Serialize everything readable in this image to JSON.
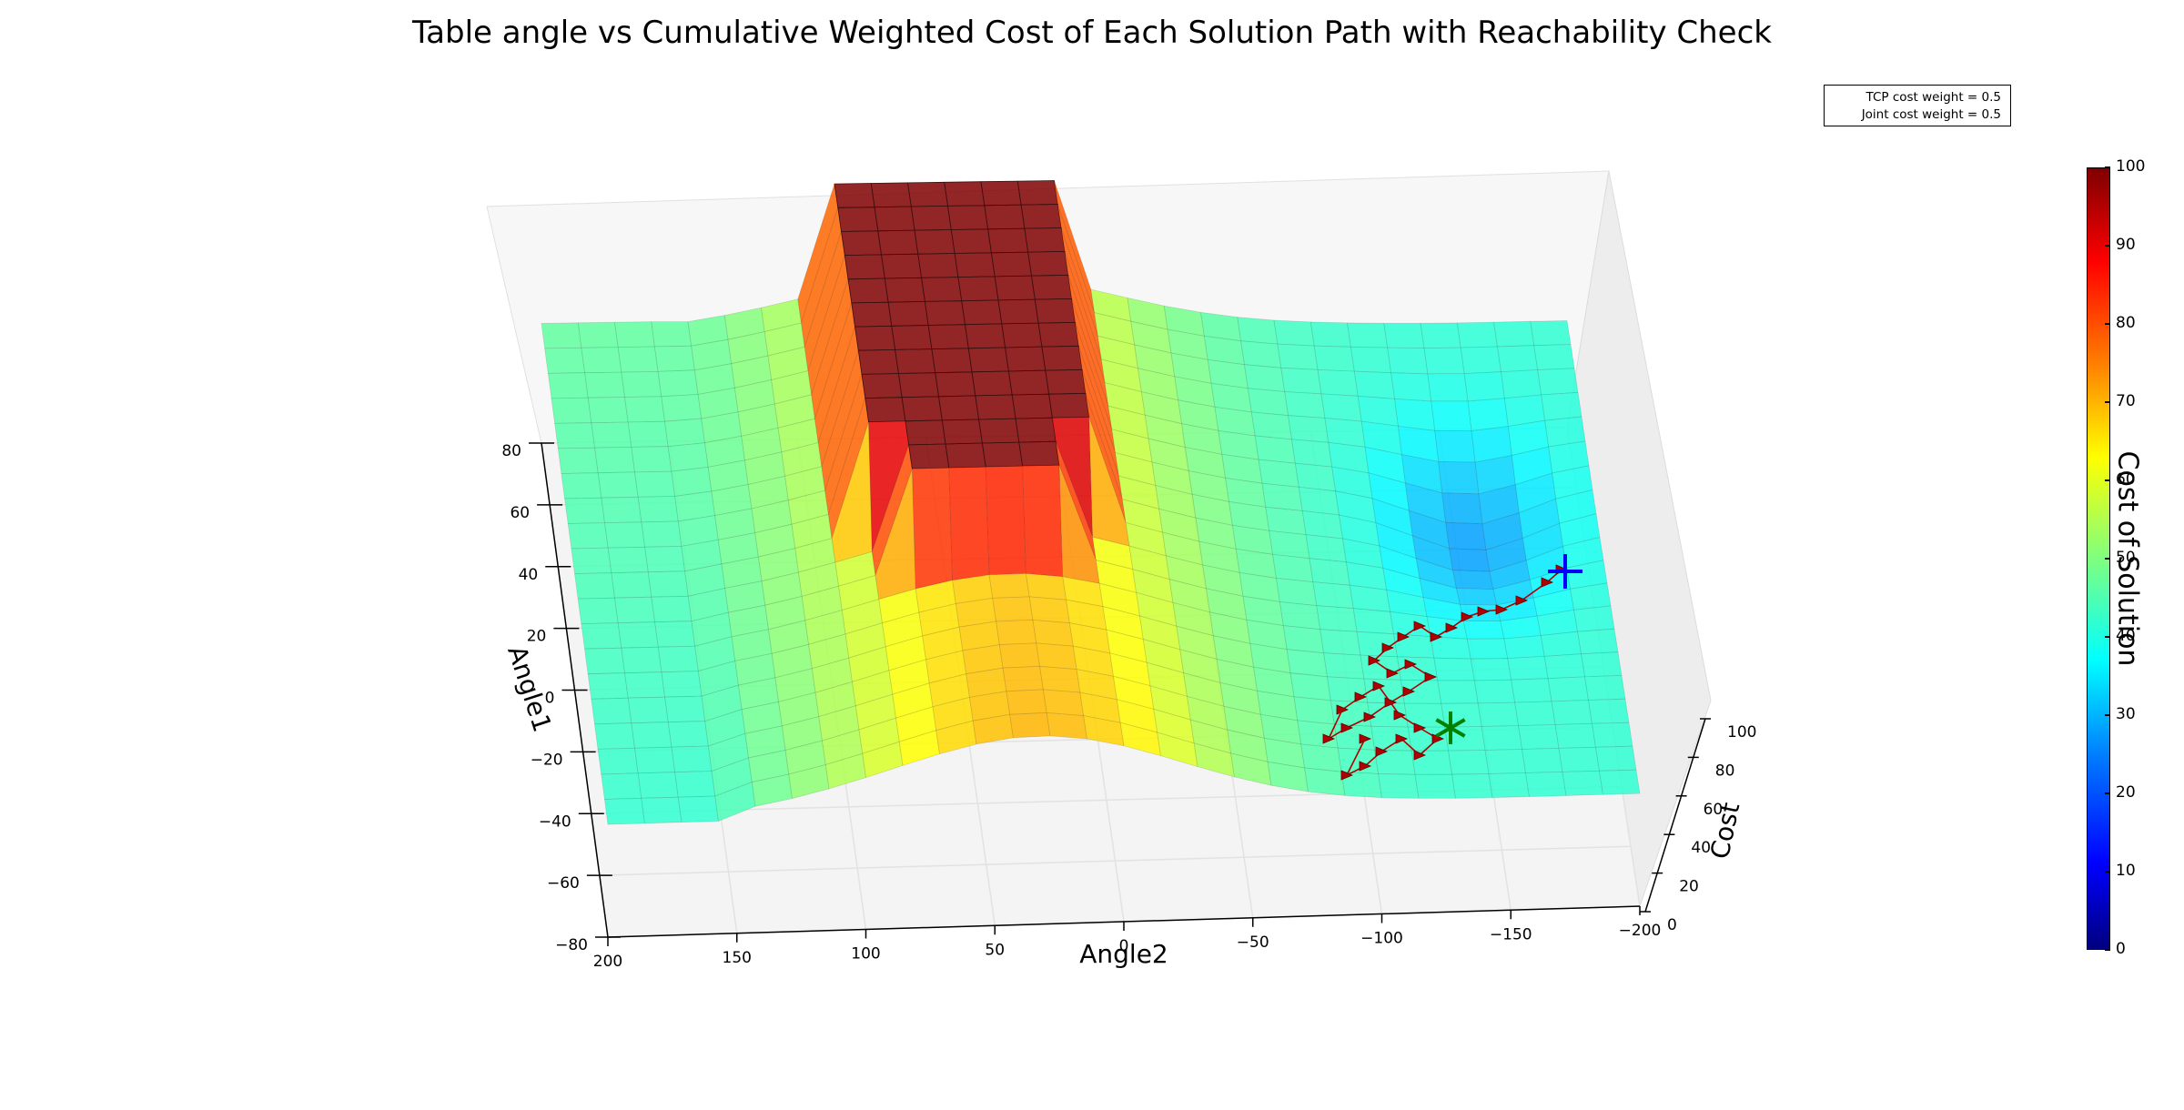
{
  "title": "Table angle vs Cumulative Weighted Cost of Each Solution Path with Reachability Check",
  "legend": {
    "entries": [
      "TCP cost weight = 0.5",
      "Joint cost weight = 0.5"
    ]
  },
  "colorbar": {
    "label": "Cost of Solution",
    "ticks": [
      "0",
      "10",
      "20",
      "30",
      "40",
      "50",
      "60",
      "70",
      "80",
      "90",
      "100"
    ]
  },
  "chart_data": {
    "type": "surface3d",
    "title": "Table angle vs Cumulative Weighted Cost of Each Solution Path with Reachability Check",
    "xlabel": "Angle2",
    "ylabel": "Angle1",
    "zlabel": "Cost",
    "x_ticks": [
      "200",
      "150",
      "100",
      "50",
      "0",
      "−50",
      "−100",
      "−150",
      "−200"
    ],
    "y_ticks": [
      "80",
      "60",
      "40",
      "20",
      "0",
      "−20",
      "−40",
      "−60",
      "−80"
    ],
    "z_ticks": [
      "0",
      "20",
      "40",
      "60",
      "80",
      "100"
    ],
    "xlim": [
      200,
      -200
    ],
    "ylim": [
      -80,
      80
    ],
    "zlim": [
      0,
      100
    ],
    "colormap": "jet",
    "clim": [
      0,
      100
    ],
    "markers": [
      {
        "symbol": "+",
        "color": "#0000ff",
        "meaning": "start"
      },
      {
        "symbol": "*",
        "color": "#008000",
        "meaning": "goal"
      }
    ],
    "path_color": "#b00000"
  }
}
